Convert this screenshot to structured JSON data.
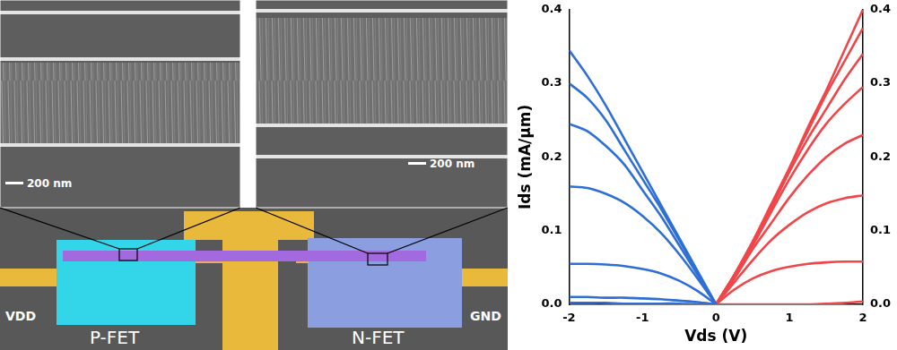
{
  "chart_data": {
    "type": "line",
    "x_label": "Vds (V)",
    "y_label": "Ids (mA/μm)",
    "xlim": [
      -2,
      2
    ],
    "xticks": [
      -2,
      -1,
      0,
      1,
      2
    ],
    "ylim": [
      0,
      0.4
    ],
    "yticks": [
      {
        "value": 0,
        "label": "0.0"
      },
      0.1,
      0.2,
      0.3,
      0.4
    ],
    "y2lim": [
      0,
      0.4
    ],
    "y2ticks": [
      {
        "value": 0,
        "label": "0.0"
      },
      0.1,
      0.2,
      0.3,
      0.4
    ],
    "grid": false,
    "series": [
      {
        "color": "#2e6fd6",
        "x": [
          -2,
          -1.75,
          -1.5,
          -1.25,
          -1,
          -0.75,
          -0.5,
          -0.25,
          0
        ],
        "values": [
          0.345,
          0.31,
          0.27,
          0.225,
          0.18,
          0.135,
          0.09,
          0.045,
          0
        ]
      },
      {
        "color": "#2e6fd6",
        "x": [
          -2,
          -1.75,
          -1.5,
          -1.25,
          -1,
          -0.75,
          -0.5,
          -0.25,
          0
        ],
        "values": [
          0.3,
          0.28,
          0.25,
          0.21,
          0.17,
          0.13,
          0.087,
          0.043,
          0
        ]
      },
      {
        "color": "#2e6fd6",
        "x": [
          -2,
          -1.75,
          -1.5,
          -1.25,
          -1,
          -0.75,
          -0.5,
          -0.25,
          0
        ],
        "values": [
          0.245,
          0.235,
          0.215,
          0.19,
          0.155,
          0.12,
          0.08,
          0.04,
          0
        ]
      },
      {
        "color": "#2e6fd6",
        "x": [
          -2,
          -1.75,
          -1.5,
          -1.25,
          -1,
          -0.75,
          -0.5,
          -0.25,
          0
        ],
        "values": [
          0.16,
          0.158,
          0.15,
          0.138,
          0.12,
          0.097,
          0.068,
          0.035,
          0
        ]
      },
      {
        "color": "#2e6fd6",
        "x": [
          -2,
          -1.75,
          -1.5,
          -1.25,
          -1,
          -0.75,
          -0.5,
          -0.25,
          0
        ],
        "values": [
          0.055,
          0.055,
          0.054,
          0.052,
          0.048,
          0.042,
          0.032,
          0.018,
          0
        ]
      },
      {
        "color": "#2e6fd6",
        "x": [
          -2,
          -1.75,
          -1.5,
          -1.25,
          -1,
          -0.75,
          -0.5,
          -0.25,
          0
        ],
        "values": [
          0.01,
          0.01,
          0.009,
          0.009,
          0.008,
          0.007,
          0.005,
          0.003,
          0
        ]
      },
      {
        "color": "#2e6fd6",
        "x": [
          -2,
          -1.75,
          -1.5,
          -1.25,
          -1,
          -0.75,
          -0.5,
          -0.25,
          0
        ],
        "values": [
          0.002,
          0.002,
          0.002,
          0.001,
          0.001,
          0.001,
          0.001,
          0,
          0
        ]
      },
      {
        "color": "#f0464a",
        "x": [
          0,
          0.25,
          0.5,
          0.75,
          1,
          1.25,
          1.5,
          1.75,
          2
        ],
        "values": [
          0,
          0.04,
          0.085,
          0.135,
          0.185,
          0.24,
          0.29,
          0.345,
          0.4
        ]
      },
      {
        "color": "#f0464a",
        "x": [
          0,
          0.25,
          0.5,
          0.75,
          1,
          1.25,
          1.5,
          1.75,
          2
        ],
        "values": [
          0,
          0.04,
          0.085,
          0.135,
          0.185,
          0.235,
          0.285,
          0.33,
          0.375
        ]
      },
      {
        "color": "#f0464a",
        "x": [
          0,
          0.25,
          0.5,
          0.75,
          1,
          1.25,
          1.5,
          1.75,
          2
        ],
        "values": [
          0,
          0.04,
          0.085,
          0.13,
          0.18,
          0.225,
          0.265,
          0.305,
          0.34
        ]
      },
      {
        "color": "#f0464a",
        "x": [
          0,
          0.25,
          0.5,
          0.75,
          1,
          1.25,
          1.5,
          1.75,
          2
        ],
        "values": [
          0,
          0.04,
          0.08,
          0.125,
          0.17,
          0.21,
          0.245,
          0.272,
          0.295
        ]
      },
      {
        "color": "#f0464a",
        "x": [
          0,
          0.25,
          0.5,
          0.75,
          1,
          1.25,
          1.5,
          1.75,
          2
        ],
        "values": [
          0,
          0.035,
          0.075,
          0.11,
          0.145,
          0.175,
          0.2,
          0.218,
          0.23
        ]
      },
      {
        "color": "#f0464a",
        "x": [
          0,
          0.25,
          0.5,
          0.75,
          1,
          1.25,
          1.5,
          1.75,
          2
        ],
        "values": [
          0,
          0.03,
          0.06,
          0.087,
          0.108,
          0.125,
          0.137,
          0.144,
          0.148
        ]
      },
      {
        "color": "#f0464a",
        "x": [
          0,
          0.25,
          0.5,
          0.75,
          1,
          1.25,
          1.5,
          1.75,
          2
        ],
        "values": [
          0,
          0.02,
          0.035,
          0.045,
          0.051,
          0.055,
          0.057,
          0.058,
          0.058
        ]
      },
      {
        "color": "#f0464a",
        "x": [
          0,
          0.25,
          0.5,
          0.75,
          1,
          1.25,
          1.5,
          1.75,
          2
        ],
        "values": [
          0,
          0,
          0,
          0,
          0,
          0,
          0.001,
          0.002,
          0.004
        ]
      }
    ]
  },
  "device_image": {
    "sem_panels": [
      {
        "scale_bar": "200 nm"
      },
      {
        "scale_bar": "200 nm"
      }
    ],
    "layout": {
      "pads": [
        "VDD",
        "GND"
      ],
      "transistors": [
        "P-FET",
        "N-FET"
      ]
    }
  }
}
